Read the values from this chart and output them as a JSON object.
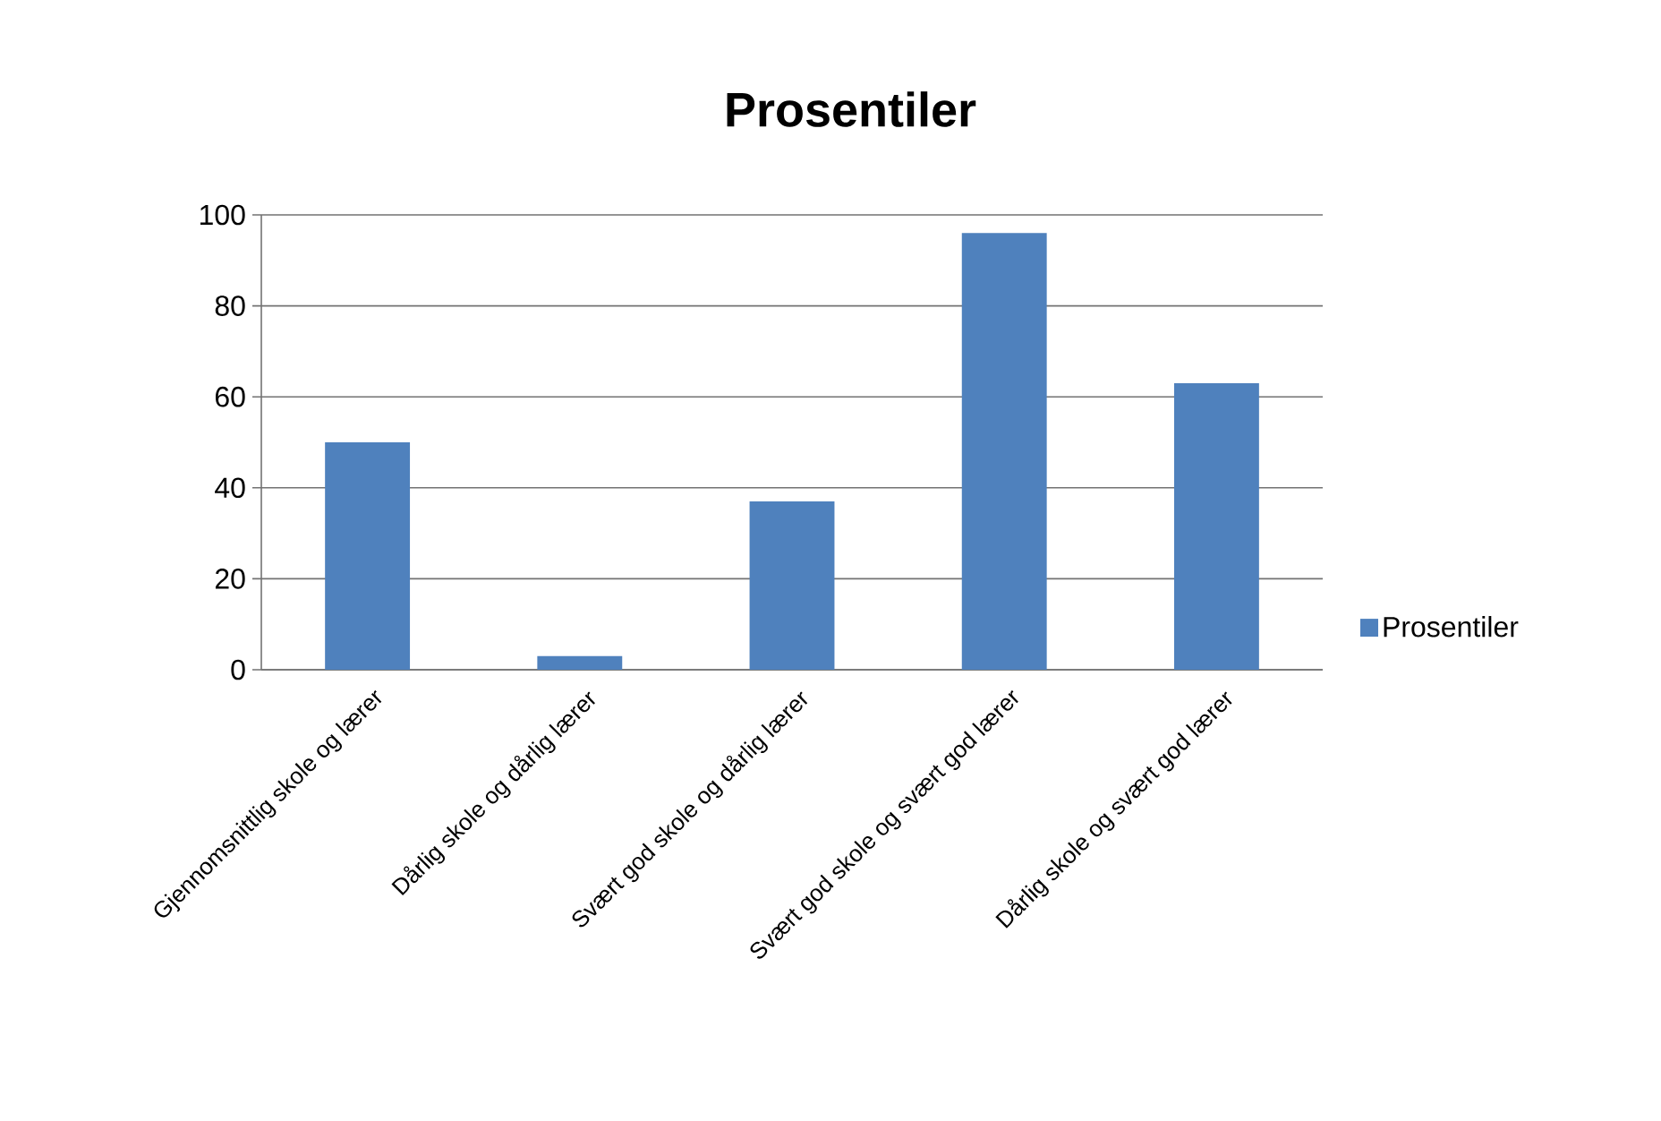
{
  "chart_data": {
    "type": "bar",
    "title": "Prosentiler",
    "categories": [
      "Gjennomsnittlig skole og lærer",
      "Dårlig skole og dårlig lærer",
      "Svært god skole og dårlig lærer",
      "Svært god skole og svært god lærer",
      "Dårlig skole og svært god lærer"
    ],
    "series": [
      {
        "name": "Prosentiler",
        "color": "#4f81bd",
        "values": [
          50,
          3,
          37,
          96,
          63
        ]
      }
    ],
    "ylim": [
      0,
      100
    ],
    "yticks": [
      0,
      20,
      40,
      60,
      80,
      100
    ],
    "grid": "y",
    "legend": "right"
  }
}
